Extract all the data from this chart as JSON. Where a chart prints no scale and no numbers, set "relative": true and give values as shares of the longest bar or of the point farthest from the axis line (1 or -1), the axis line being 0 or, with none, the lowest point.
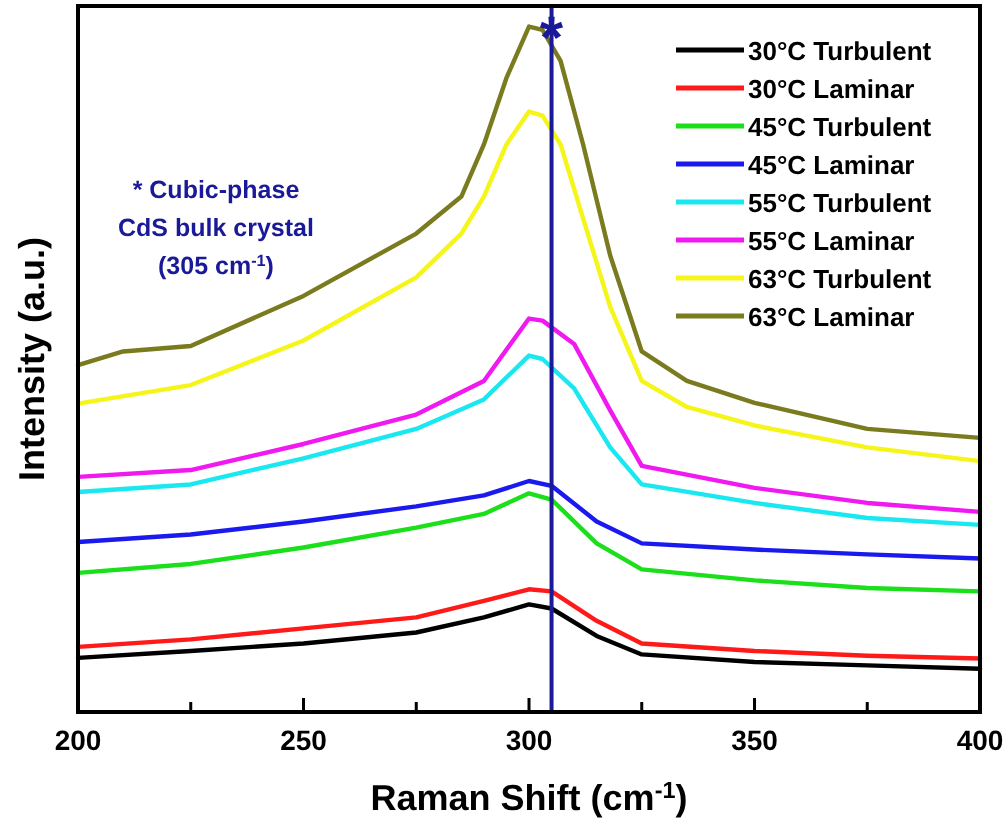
{
  "chart_data": {
    "type": "line",
    "relative": true,
    "xlabel": "Raman Shift (cm$^{-1}$)",
    "ylabel": "Intensity (a.u.)",
    "xlim": [
      200,
      400
    ],
    "xticks": [
      200,
      {
        "value": 225,
        "label": null
      },
      250,
      {
        "value": 275,
        "label": null
      },
      300,
      {
        "value": 325,
        "label": null
      },
      350,
      {
        "value": 375,
        "label": null
      },
      400
    ],
    "legend": "top right",
    "line_style": "solid",
    "ref_lines": [
      {
        "axis": "x",
        "value": 305,
        "label": "*",
        "color": "#1a1a99"
      }
    ],
    "annotations": [
      "* Cubic-phase\nCdS bulk crystal\n(305 cm$^{-1}$)"
    ],
    "series": [
      {
        "name": "30°C Turbulent",
        "color": "#000000",
        "x": [
          200,
          225,
          250,
          275,
          290,
          300,
          305,
          315,
          325,
          350,
          375,
          400
        ],
        "values": [
          0.079,
          0.089,
          0.1,
          0.116,
          0.138,
          0.157,
          0.151,
          0.111,
          0.084,
          0.073,
          0.068,
          0.063
        ]
      },
      {
        "name": "30°C Laminar",
        "color": "#ff1a1a",
        "x": [
          200,
          225,
          250,
          275,
          290,
          300,
          305,
          315,
          325,
          350,
          375,
          400
        ],
        "values": [
          0.095,
          0.106,
          0.122,
          0.138,
          0.162,
          0.179,
          0.176,
          0.133,
          0.1,
          0.089,
          0.082,
          0.078
        ]
      },
      {
        "name": "45°C Turbulent",
        "color": "#1adf1a",
        "x": [
          200,
          225,
          250,
          275,
          290,
          300,
          305,
          315,
          325,
          350,
          375,
          400
        ],
        "values": [
          0.203,
          0.216,
          0.24,
          0.269,
          0.289,
          0.319,
          0.31,
          0.246,
          0.208,
          0.192,
          0.181,
          0.176
        ]
      },
      {
        "name": "45°C Laminar",
        "color": "#1a1aee",
        "x": [
          200,
          225,
          250,
          275,
          290,
          300,
          305,
          315,
          325,
          350,
          375,
          400
        ],
        "values": [
          0.248,
          0.259,
          0.278,
          0.3,
          0.316,
          0.337,
          0.33,
          0.278,
          0.246,
          0.237,
          0.23,
          0.224
        ]
      },
      {
        "name": "55°C Turbulent",
        "color": "#1ae8f0",
        "x": [
          200,
          225,
          250,
          275,
          290,
          300,
          303,
          310,
          318,
          325,
          350,
          375,
          400
        ],
        "values": [
          0.321,
          0.332,
          0.37,
          0.413,
          0.456,
          0.52,
          0.515,
          0.472,
          0.386,
          0.332,
          0.305,
          0.283,
          0.273
        ]
      },
      {
        "name": "55°C Laminar",
        "color": "#f01af0",
        "x": [
          200,
          225,
          250,
          275,
          290,
          300,
          303,
          310,
          318,
          325,
          350,
          375,
          400
        ],
        "values": [
          0.343,
          0.353,
          0.391,
          0.434,
          0.483,
          0.574,
          0.571,
          0.537,
          0.44,
          0.359,
          0.327,
          0.305,
          0.292
        ]
      },
      {
        "name": "63°C Turbulent",
        "color": "#f5f51a",
        "x": [
          200,
          225,
          250,
          275,
          285,
          290,
          295,
          300,
          303,
          307,
          312,
          318,
          325,
          335,
          350,
          375,
          400
        ],
        "values": [
          0.45,
          0.477,
          0.542,
          0.634,
          0.698,
          0.752,
          0.828,
          0.876,
          0.87,
          0.828,
          0.72,
          0.591,
          0.483,
          0.445,
          0.418,
          0.386,
          0.366
        ]
      },
      {
        "name": "63°C Laminar",
        "color": "#7a7a1f",
        "x": [
          200,
          210,
          225,
          250,
          275,
          285,
          290,
          295,
          300,
          303,
          307,
          312,
          318,
          325,
          335,
          350,
          375,
          400
        ],
        "values": [
          0.506,
          0.526,
          0.534,
          0.607,
          0.698,
          0.752,
          0.828,
          0.925,
          1,
          0.995,
          0.95,
          0.828,
          0.666,
          0.526,
          0.483,
          0.451,
          0.413,
          0.4
        ]
      }
    ]
  }
}
